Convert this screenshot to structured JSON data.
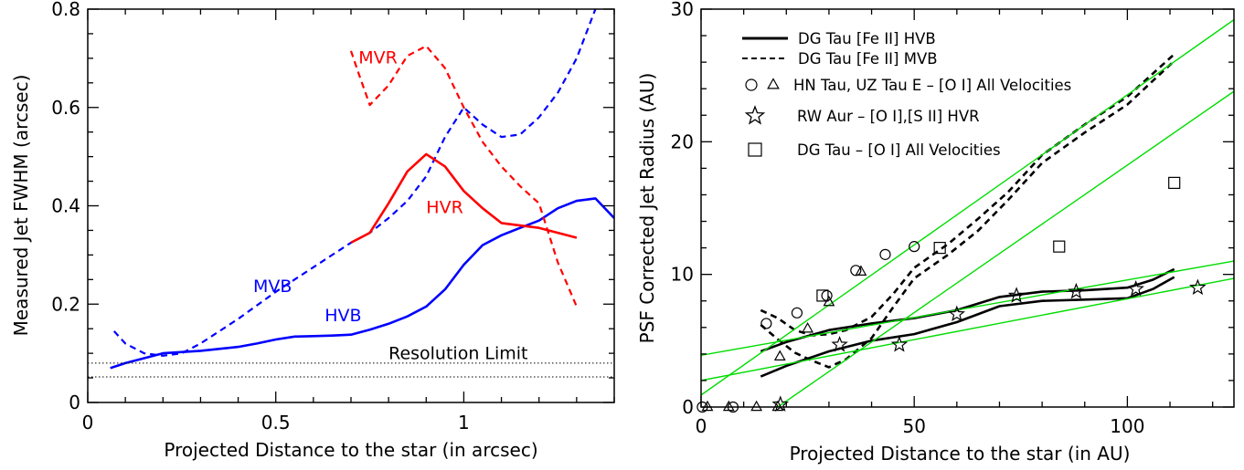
{
  "chart_data": [
    {
      "type": "line",
      "xlabel": "Projected Distance to the star (in arcsec)",
      "ylabel": "Measured Jet FWHM (arcsec)",
      "xlim": [
        0,
        1.4
      ],
      "ylim": [
        0,
        0.8
      ],
      "xticks": [
        0,
        0.5,
        1
      ],
      "xtick_labels": [
        "0",
        "0.5",
        "1"
      ],
      "yticks": [
        0,
        0.2,
        0.4,
        0.6,
        0.8
      ],
      "ytick_labels": [
        "0",
        "0.2",
        "0.4",
        "0.6",
        "0.8"
      ],
      "series": [
        {
          "name": "HVB",
          "color": "#0000ff",
          "style": "solid",
          "x": [
            0.06,
            0.1,
            0.15,
            0.2,
            0.3,
            0.4,
            0.45,
            0.5,
            0.55,
            0.6,
            0.65,
            0.7,
            0.75,
            0.8,
            0.85,
            0.9,
            0.95,
            1.0,
            1.05,
            1.1,
            1.15,
            1.2,
            1.25,
            1.3,
            1.35,
            1.4
          ],
          "y": [
            0.07,
            0.08,
            0.09,
            0.1,
            0.105,
            0.113,
            0.12,
            0.128,
            0.134,
            0.135,
            0.136,
            0.138,
            0.148,
            0.16,
            0.175,
            0.195,
            0.23,
            0.28,
            0.32,
            0.34,
            0.355,
            0.37,
            0.395,
            0.41,
            0.415,
            0.375
          ]
        },
        {
          "name": "MVB",
          "color": "#0000ff",
          "style": "dashed",
          "x": [
            0.07,
            0.1,
            0.15,
            0.2,
            0.25,
            0.3,
            0.4,
            0.5,
            0.6,
            0.7,
            0.75,
            0.8,
            0.85,
            0.9,
            0.95,
            1.0,
            1.05,
            1.1,
            1.15,
            1.2,
            1.25,
            1.3,
            1.35
          ],
          "y": [
            0.145,
            0.12,
            0.1,
            0.095,
            0.1,
            0.12,
            0.17,
            0.225,
            0.275,
            0.325,
            0.345,
            0.375,
            0.41,
            0.46,
            0.54,
            0.6,
            0.565,
            0.54,
            0.545,
            0.58,
            0.63,
            0.7,
            0.8
          ]
        },
        {
          "name": "HVR",
          "color": "#ff0000",
          "style": "solid",
          "x": [
            0.7,
            0.75,
            0.8,
            0.85,
            0.9,
            0.95,
            1.0,
            1.05,
            1.1,
            1.15,
            1.2,
            1.25,
            1.3
          ],
          "y": [
            0.325,
            0.345,
            0.405,
            0.47,
            0.505,
            0.48,
            0.43,
            0.395,
            0.365,
            0.36,
            0.355,
            0.345,
            0.335
          ]
        },
        {
          "name": "MVR",
          "color": "#ff0000",
          "style": "dashed",
          "x": [
            0.7,
            0.72,
            0.75,
            0.8,
            0.85,
            0.9,
            0.95,
            1.0,
            1.05,
            1.1,
            1.15,
            1.2,
            1.25,
            1.3
          ],
          "y": [
            0.715,
            0.67,
            0.605,
            0.645,
            0.705,
            0.725,
            0.68,
            0.6,
            0.53,
            0.48,
            0.44,
            0.405,
            0.285,
            0.195
          ]
        },
        {
          "name": "Resolution Limit upper",
          "color": "#000000",
          "style": "dotted",
          "x": [
            0,
            1.4
          ],
          "y": [
            0.08,
            0.08
          ]
        },
        {
          "name": "Resolution Limit lower",
          "color": "#000000",
          "style": "dotted",
          "x": [
            0,
            1.4
          ],
          "y": [
            0.052,
            0.052
          ]
        }
      ],
      "annotations": [
        {
          "text": "MVR",
          "x": 0.72,
          "y": 0.69,
          "color": "#ff0000"
        },
        {
          "text": "HVR",
          "x": 0.9,
          "y": 0.385,
          "color": "#ff0000"
        },
        {
          "text": "MVB",
          "x": 0.44,
          "y": 0.225,
          "color": "#0000ff"
        },
        {
          "text": "HVB",
          "x": 0.63,
          "y": 0.165,
          "color": "#0000ff"
        },
        {
          "text": "Resolution Limit",
          "x": 0.8,
          "y": 0.088,
          "color": "#000000"
        }
      ]
    },
    {
      "type": "line",
      "xlabel": "Projected Distance to the star (in AU)",
      "ylabel": "PSF Corrected Jet Radius (AU)",
      "xlim": [
        0,
        125
      ],
      "ylim": [
        0,
        30
      ],
      "xticks": [
        0,
        50,
        100
      ],
      "xtick_labels": [
        "0",
        "50",
        "100"
      ],
      "yticks": [
        0,
        10,
        20,
        30
      ],
      "ytick_labels": [
        "0",
        "10",
        "20",
        "30"
      ],
      "legend": {
        "position": "top-left",
        "entries": [
          {
            "label": "DG Tau [Fe II] HVB",
            "symbol": "solid-line"
          },
          {
            "label": "DG Tau [Fe II] MVB",
            "symbol": "dashed-line"
          },
          {
            "label": "HN Tau, UZ Tau E – [O I] All Velocities",
            "symbol": "circle-triangle"
          },
          {
            "label": "RW Aur – [O I],[S II]  HVR",
            "symbol": "star"
          },
          {
            "label": "DG Tau – [O I] All Velocities",
            "symbol": "square"
          }
        ]
      },
      "lines": [
        {
          "name": "HVB upper",
          "color": "#000000",
          "style": "solid",
          "x": [
            14,
            20,
            30,
            40,
            50,
            60,
            70,
            80,
            90,
            100,
            106,
            111
          ],
          "y": [
            4.2,
            4.9,
            5.8,
            6.3,
            6.7,
            7.3,
            8.3,
            8.7,
            8.8,
            9.0,
            9.6,
            10.4
          ]
        },
        {
          "name": "HVB lower",
          "color": "#000000",
          "style": "solid",
          "x": [
            14,
            20,
            30,
            40,
            50,
            60,
            70,
            80,
            90,
            100,
            106,
            111
          ],
          "y": [
            2.3,
            3.1,
            4.2,
            5.0,
            5.5,
            6.4,
            7.6,
            8.0,
            8.1,
            8.2,
            8.9,
            9.8
          ]
        },
        {
          "name": "MVB upper",
          "color": "#000000",
          "style": "dashed",
          "x": [
            14,
            18,
            22,
            26,
            30,
            34,
            40,
            45,
            50,
            58,
            65,
            72,
            80,
            90,
            100,
            111
          ],
          "y": [
            7.3,
            6.7,
            5.8,
            5.4,
            5.5,
            5.8,
            6.8,
            8.5,
            10.5,
            12.3,
            14.2,
            16.2,
            19.0,
            21.3,
            23.4,
            26.6
          ]
        },
        {
          "name": "MVB lower",
          "color": "#000000",
          "style": "dashed",
          "x": [
            14,
            18,
            22,
            26,
            30,
            34,
            40,
            45,
            50,
            58,
            65,
            72,
            80,
            90,
            100,
            111
          ],
          "y": [
            6.2,
            5.1,
            4.1,
            3.5,
            3.0,
            3.6,
            5.2,
            7.5,
            9.7,
            11.5,
            13.3,
            15.6,
            18.4,
            20.7,
            22.8,
            26.1
          ]
        },
        {
          "name": "fit 1",
          "color": "#00dd00",
          "style": "solid",
          "x": [
            0,
            125
          ],
          "y": [
            0.9,
            29.2
          ]
        },
        {
          "name": "fit 2",
          "color": "#00dd00",
          "style": "solid",
          "x": [
            0,
            125
          ],
          "y": [
            -4.0,
            23.8
          ]
        },
        {
          "name": "fit 3",
          "color": "#00dd00",
          "style": "solid",
          "x": [
            0,
            125
          ],
          "y": [
            3.9,
            11.0
          ]
        },
        {
          "name": "fit 4",
          "color": "#00dd00",
          "style": "solid",
          "x": [
            0,
            125
          ],
          "y": [
            2.0,
            9.7
          ]
        }
      ],
      "markers": {
        "circles": [
          [
            0.3,
            0
          ],
          [
            7.5,
            0
          ],
          [
            15.3,
            6.3
          ],
          [
            22.5,
            7.1
          ],
          [
            29.5,
            8.4
          ],
          [
            36.3,
            10.3
          ],
          [
            43.2,
            11.5
          ],
          [
            50,
            12.1
          ]
        ],
        "triangles": [
          [
            1.5,
            0
          ],
          [
            6.5,
            0
          ],
          [
            13,
            0
          ],
          [
            18,
            0
          ],
          [
            18.5,
            3.8
          ],
          [
            25,
            5.9
          ],
          [
            30,
            7.9
          ],
          [
            37.5,
            10.2
          ]
        ],
        "stars": [
          [
            18.6,
            0.2
          ],
          [
            32.5,
            4.7
          ],
          [
            46.5,
            4.7
          ],
          [
            60,
            7.0
          ],
          [
            74,
            8.4
          ],
          [
            88,
            8.7
          ],
          [
            102,
            8.9
          ],
          [
            116.5,
            9.0
          ]
        ],
        "squares": [
          [
            28.5,
            8.4
          ],
          [
            56,
            12.0
          ],
          [
            84,
            12.1
          ],
          [
            111,
            16.9
          ]
        ]
      }
    }
  ]
}
